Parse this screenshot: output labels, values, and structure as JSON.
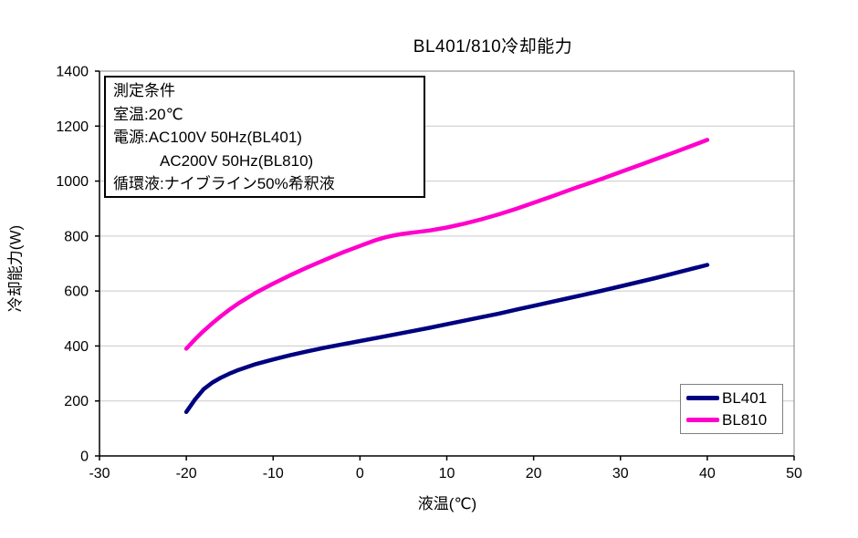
{
  "chart_data": {
    "type": "line",
    "title": "BL401/810冷却能力",
    "xlabel": "液温(℃)",
    "ylabel": "冷却能力(W)",
    "xlim": [
      -30,
      50
    ],
    "ylim": [
      0,
      1400
    ],
    "x_ticks": [
      -30,
      -20,
      -10,
      0,
      10,
      20,
      30,
      40,
      50
    ],
    "y_ticks": [
      0,
      200,
      400,
      600,
      800,
      1000,
      1200,
      1400
    ],
    "grid": "horizontal-major",
    "legend_position": "bottom-right-inside",
    "series": [
      {
        "name": "BL401",
        "color": "#000080",
        "points": [
          [
            -20,
            160
          ],
          [
            -19,
            205
          ],
          [
            -18,
            243
          ],
          [
            -17,
            267
          ],
          [
            -16,
            285
          ],
          [
            -15,
            300
          ],
          [
            -14,
            313
          ],
          [
            -12,
            334
          ],
          [
            -10,
            351
          ],
          [
            -8,
            367
          ],
          [
            -6,
            381
          ],
          [
            -4,
            394
          ],
          [
            -2,
            406
          ],
          [
            0,
            418
          ],
          [
            2,
            430
          ],
          [
            4,
            442
          ],
          [
            6,
            454
          ],
          [
            8,
            466
          ],
          [
            10,
            479
          ],
          [
            12,
            492
          ],
          [
            14,
            505
          ],
          [
            16,
            518
          ],
          [
            18,
            532
          ],
          [
            20,
            546
          ],
          [
            22,
            560
          ],
          [
            24,
            574
          ],
          [
            26,
            588
          ],
          [
            28,
            602
          ],
          [
            30,
            617
          ],
          [
            32,
            632
          ],
          [
            34,
            647
          ],
          [
            36,
            663
          ],
          [
            38,
            679
          ],
          [
            40,
            695
          ]
        ]
      },
      {
        "name": "BL810",
        "color": "#FF00CC",
        "points": [
          [
            -20,
            390
          ],
          [
            -19,
            424
          ],
          [
            -18,
            455
          ],
          [
            -17,
            483
          ],
          [
            -16,
            509
          ],
          [
            -15,
            533
          ],
          [
            -14,
            555
          ],
          [
            -12,
            594
          ],
          [
            -10,
            627
          ],
          [
            -8,
            658
          ],
          [
            -6,
            687
          ],
          [
            -4,
            714
          ],
          [
            -2,
            740
          ],
          [
            0,
            764
          ],
          [
            1,
            776
          ],
          [
            2,
            787
          ],
          [
            3,
            796
          ],
          [
            4,
            803
          ],
          [
            5,
            808
          ],
          [
            6,
            812
          ],
          [
            8,
            820
          ],
          [
            10,
            831
          ],
          [
            12,
            845
          ],
          [
            14,
            861
          ],
          [
            16,
            879
          ],
          [
            18,
            899
          ],
          [
            20,
            921
          ],
          [
            22,
            943
          ],
          [
            24,
            966
          ],
          [
            26,
            988
          ],
          [
            28,
            1010
          ],
          [
            30,
            1033
          ],
          [
            32,
            1056
          ],
          [
            34,
            1079
          ],
          [
            36,
            1102
          ],
          [
            38,
            1126
          ],
          [
            40,
            1150
          ]
        ]
      }
    ]
  },
  "annotation_box": {
    "lines": [
      "測定条件",
      "室温:20℃",
      "電源:AC100V 50Hz(BL401)",
      "　　　AC200V 50Hz(BL810)",
      "循環液:ナイブライン50%希釈液"
    ]
  },
  "colors": {
    "series_bl401": "#000080",
    "series_bl810": "#FF00CC",
    "gridline": "#C9C9C9",
    "plot_border": "#808080",
    "axis": "#000000",
    "background": "#FFFFFF"
  }
}
